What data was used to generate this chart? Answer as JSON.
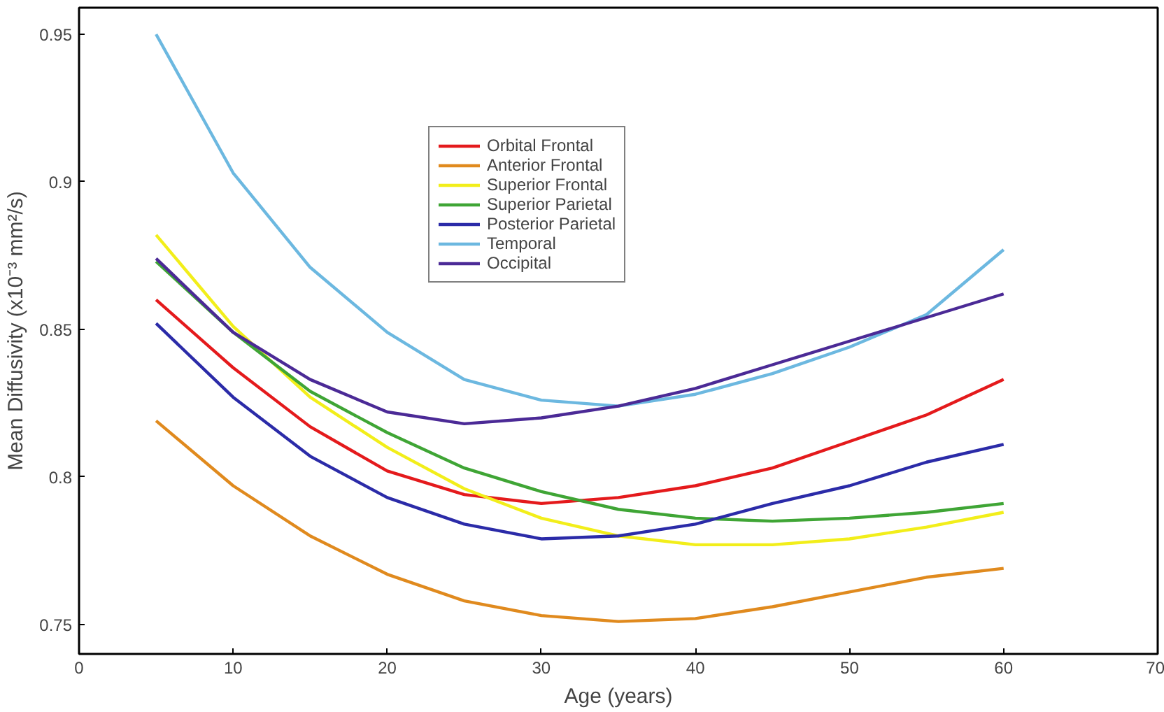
{
  "chart_data": {
    "type": "line",
    "xlabel": "Age (years)",
    "ylabel": "Mean Diffusivity (x10⁻³ mm²/s)",
    "x": [
      5,
      10,
      15,
      20,
      25,
      30,
      35,
      40,
      45,
      50,
      55,
      60
    ],
    "xlim": [
      0,
      70
    ],
    "xticks": [
      0,
      10,
      20,
      30,
      40,
      50,
      60,
      70
    ],
    "ylim": [
      0.74,
      0.959
    ],
    "yticks": [
      0.75,
      0.8,
      0.85,
      0.9,
      0.95
    ],
    "grid": false,
    "legend": "top",
    "marker": "none",
    "line_style": "solid",
    "series": [
      {
        "name": "Orbital Frontal",
        "color": "#e41a1c",
        "values": [
          0.86,
          0.837,
          0.817,
          0.802,
          0.794,
          0.791,
          0.793,
          0.797,
          0.803,
          0.812,
          0.821,
          0.833
        ]
      },
      {
        "name": "Anterior Frontal",
        "color": "#e08a1e",
        "values": [
          0.819,
          0.797,
          0.78,
          0.767,
          0.758,
          0.753,
          0.751,
          0.752,
          0.756,
          0.761,
          0.766,
          0.769
        ]
      },
      {
        "name": "Superior Frontal",
        "color": "#f2ee1a",
        "values": [
          0.882,
          0.851,
          0.827,
          0.81,
          0.796,
          0.786,
          0.78,
          0.777,
          0.777,
          0.779,
          0.783,
          0.788
        ]
      },
      {
        "name": "Superior Parietal",
        "color": "#3fa535",
        "values": [
          0.873,
          0.849,
          0.829,
          0.815,
          0.803,
          0.795,
          0.789,
          0.786,
          0.785,
          0.786,
          0.788,
          0.791
        ]
      },
      {
        "name": "Posterior Parietal",
        "color": "#2b2ba8",
        "values": [
          0.852,
          0.827,
          0.807,
          0.793,
          0.784,
          0.779,
          0.78,
          0.784,
          0.791,
          0.797,
          0.805,
          0.811
        ]
      },
      {
        "name": "Temporal",
        "color": "#6cb8e0",
        "values": [
          0.95,
          0.903,
          0.871,
          0.849,
          0.833,
          0.826,
          0.824,
          0.828,
          0.835,
          0.844,
          0.855,
          0.877
        ]
      },
      {
        "name": "Occipital",
        "color": "#4b2a96",
        "values": [
          0.874,
          0.849,
          0.833,
          0.822,
          0.818,
          0.82,
          0.824,
          0.83,
          0.838,
          0.846,
          0.854,
          0.862
        ]
      }
    ]
  }
}
